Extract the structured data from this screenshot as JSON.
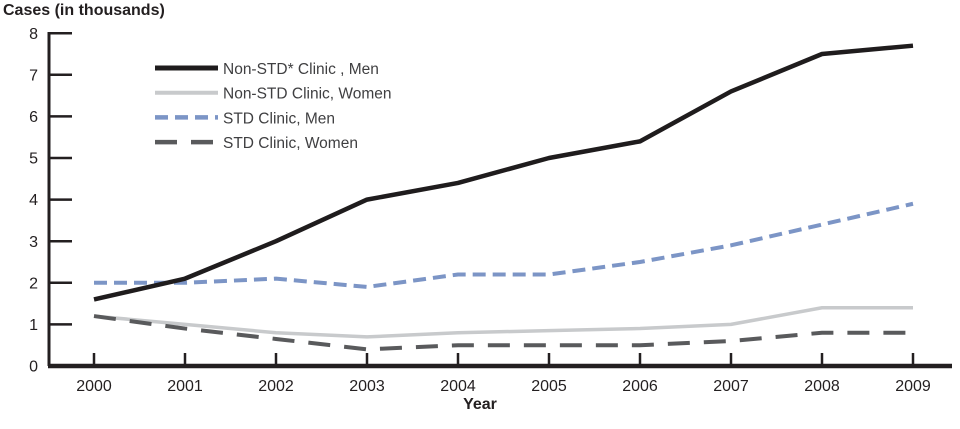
{
  "chart_data": {
    "type": "line",
    "title": "Cases (in thousands)",
    "xlabel": "Year",
    "categories": [
      "2000",
      "2001",
      "2002",
      "2003",
      "2004",
      "2005",
      "2006",
      "2007",
      "2008",
      "2009"
    ],
    "ylim": [
      0,
      8
    ],
    "yticks": [
      0,
      1,
      2,
      3,
      4,
      5,
      6,
      7,
      8
    ],
    "grid": false,
    "legend_position": "upper-left-inside",
    "axis_color": "#231f20",
    "tick_label_color": "#231f20",
    "legend_text_color": "#3f3f41",
    "series": [
      {
        "name": "Non-STD* Clinic , Men",
        "color": "#1f1c1d",
        "style": "solid",
        "width": 4.5,
        "values": [
          1.6,
          2.1,
          3.0,
          4.0,
          4.4,
          5.0,
          5.4,
          6.6,
          7.5,
          7.7
        ]
      },
      {
        "name": "Non-STD Clinic, Women",
        "color": "#c8cacc",
        "style": "solid",
        "width": 3.5,
        "values": [
          1.2,
          1.0,
          0.8,
          0.7,
          0.8,
          0.85,
          0.9,
          1.0,
          1.4,
          1.4
        ]
      },
      {
        "name": "STD Clinic, Men",
        "color": "#7c95c6",
        "style": "dashed",
        "width": 4,
        "values": [
          2.0,
          2.0,
          2.1,
          1.9,
          2.2,
          2.2,
          2.5,
          2.9,
          3.4,
          3.9
        ]
      },
      {
        "name": "STD Clinic, Women",
        "color": "#595a5c",
        "style": "long-dashed",
        "width": 4,
        "values": [
          1.2,
          0.9,
          0.65,
          0.4,
          0.5,
          0.5,
          0.5,
          0.6,
          0.8,
          0.8
        ]
      }
    ]
  }
}
